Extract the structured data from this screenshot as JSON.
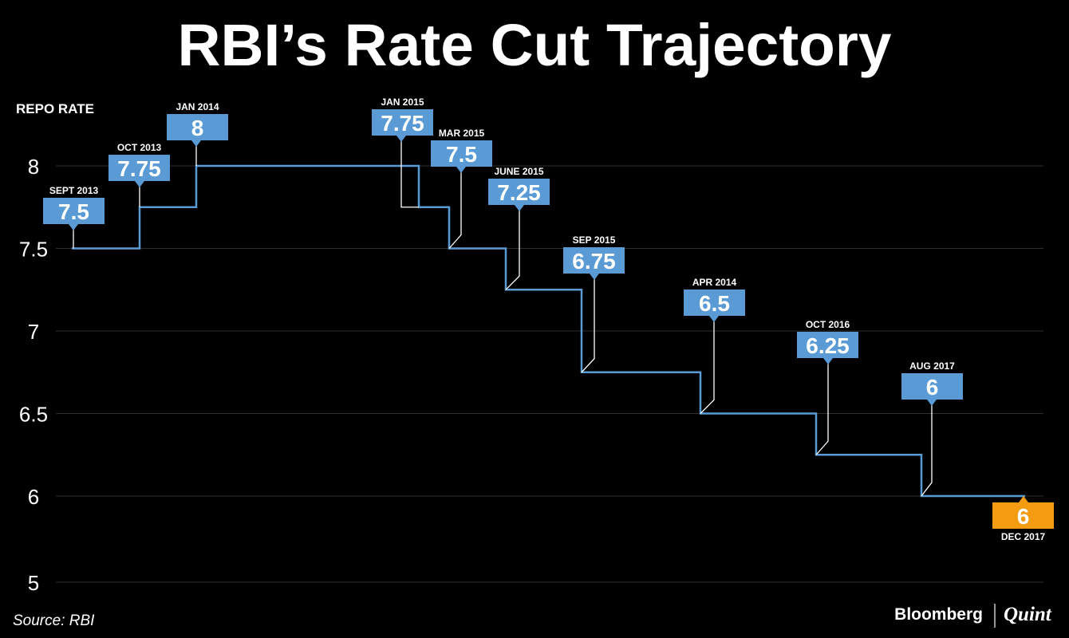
{
  "chart_data": {
    "type": "line",
    "step": true,
    "title": "RBI’s Rate Cut Trajectory",
    "ylabel": "REPO RATE",
    "yticks": [
      "8",
      "7.5",
      "7",
      "6.5",
      "6",
      "5"
    ],
    "ylim": [
      5,
      8
    ],
    "grid": true,
    "points": [
      {
        "date": "SEPT 2013",
        "value": 7.5,
        "label": "7.5"
      },
      {
        "date": "OCT 2013",
        "value": 7.75,
        "label": "7.75"
      },
      {
        "date": "JAN 2014",
        "value": 8,
        "label": "8"
      },
      {
        "date": "JAN 2015",
        "value": 7.75,
        "label": "7.75"
      },
      {
        "date": "MAR 2015",
        "value": 7.5,
        "label": "7.5"
      },
      {
        "date": "JUNE 2015",
        "value": 7.25,
        "label": "7.25"
      },
      {
        "date": "SEP 2015",
        "value": 6.75,
        "label": "6.75"
      },
      {
        "date": "APR 2014",
        "value": 6.5,
        "label": "6.5"
      },
      {
        "date": "OCT 2016",
        "value": 6.25,
        "label": "6.25"
      },
      {
        "date": "AUG 2017",
        "value": 6,
        "label": "6"
      },
      {
        "date": "DEC 2017",
        "value": 6,
        "label": "6",
        "highlight": true
      }
    ],
    "colors": {
      "line": "#5b9bd5",
      "callout": "#5b9bd5",
      "highlight": "#f39c12",
      "grid": "#2e2e2e",
      "background": "#000000"
    }
  },
  "footer": {
    "source": "Source: RBI",
    "logo_left": "Bloomberg",
    "logo_right": "Quint"
  }
}
